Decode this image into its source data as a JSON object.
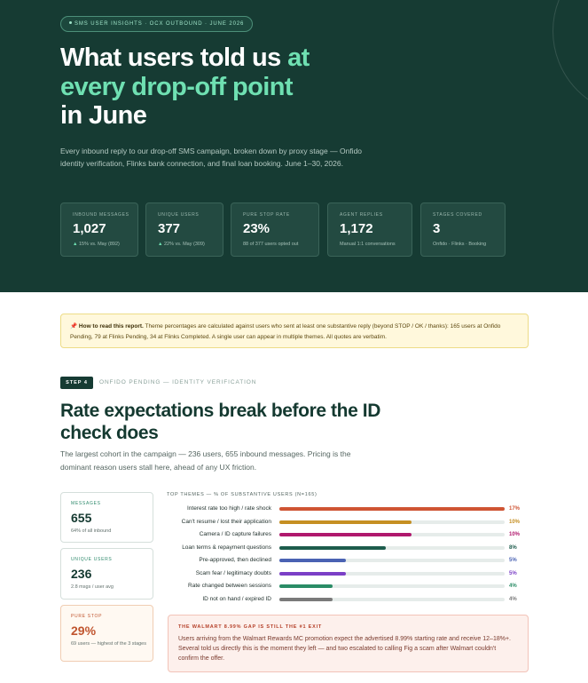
{
  "hero": {
    "eyebrow": "SMS USER INSIGHTS · OCX OUTBOUND · JUNE 2026",
    "title_line1": "What users told us ",
    "title_accent": "at every drop-off point",
    "title_line3": "in June",
    "subtitle": "Every inbound reply to our drop-off SMS campaign, broken down by proxy stage — Onfido identity verification, Flinks bank connection, and final loan booking. June 1–30, 2026.",
    "stats": [
      {
        "label": "INBOUND MESSAGES",
        "value": "1,027",
        "trend_icon": "▲",
        "note": " 15% vs. May (892)"
      },
      {
        "label": "UNIQUE USERS",
        "value": "377",
        "trend_icon": "▲",
        "note": " 22% vs. May (309)"
      },
      {
        "label": "PURE STOP RATE",
        "value": "23%",
        "trend_icon": "",
        "note": "88 of 377 users opted out"
      },
      {
        "label": "AGENT REPLIES",
        "value": "1,172",
        "trend_icon": "",
        "note": "Manual 1:1 conversations"
      },
      {
        "label": "STAGES COVERED",
        "value": "3",
        "trend_icon": "",
        "note": "Onfido · Flinks · Booking"
      }
    ]
  },
  "note": {
    "icon": "📌",
    "lead": "How to read this report.",
    "text": " Theme percentages are calculated against users who sent at least one substantive reply (beyond STOP / OK / thanks): 165 users at Onfido Pending, 79 at Flinks Pending, 34 at Flinks Completed. A single user can appear in multiple themes. All quotes are verbatim."
  },
  "step": {
    "badge": "STEP 4",
    "label": "ONFIDO PENDING — IDENTITY VERIFICATION",
    "title": "Rate expectations break before the ID check does",
    "subtitle": "The largest cohort in the campaign — 236 users, 655 inbound messages. Pricing is the dominant reason users stall here, ahead of any UX friction."
  },
  "metrics": [
    {
      "label": "MESSAGES",
      "value": "655",
      "note": "64% of all inbound"
    },
    {
      "label": "UNIQUE USERS",
      "value": "236",
      "note": "2.8 msgs / user avg"
    },
    {
      "label": "PURE STOP",
      "value": "29%",
      "note": "69 users — highest of the 3 stages"
    }
  ],
  "chart_data": {
    "type": "bar",
    "title": "TOP THEMES — % OF SUBSTANTIVE USERS (N=165)",
    "categories": [
      "Interest rate too high / rate shock",
      "Can't resume / lost their application",
      "Camera / ID capture failures",
      "Loan terms & repayment questions",
      "Pre-approved, then declined",
      "Scam fear / legitimacy doubts",
      "Rate changed between sessions",
      "ID not on hand / expired ID"
    ],
    "values": [
      17,
      10,
      10,
      8,
      5,
      5,
      4,
      4
    ],
    "labels": [
      "17%",
      "10%",
      "10%",
      "8%",
      "5%",
      "5%",
      "4%",
      "4%"
    ],
    "colors": [
      "#cf5433",
      "#c58f22",
      "#b0186d",
      "#1d5c4c",
      "#4a62b3",
      "#7b3fc6",
      "#2a8c66",
      "#7a7a7a"
    ],
    "xlim": [
      0,
      17
    ]
  },
  "callout": {
    "title": "THE WALMART 8.99% GAP IS STILL THE #1 EXIT",
    "body": "Users arriving from the Walmart Rewards MC promotion expect the advertised 8.99% starting rate and receive 12–18%+. Several told us directly this is the moment they left — and two escalated to calling Fig a scam after Walmart couldn't confirm the offer."
  }
}
